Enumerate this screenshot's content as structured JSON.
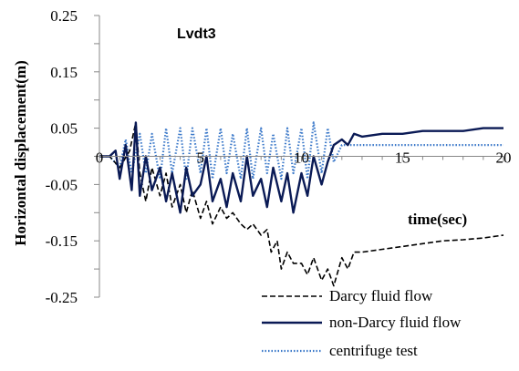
{
  "chart_data": {
    "type": "line",
    "title": "Lvdt3",
    "xlabel": "time(sec)",
    "ylabel": "Horizontal displacement(m)",
    "xlim": [
      0,
      20
    ],
    "ylim": [
      -0.25,
      0.25
    ],
    "xticks": [
      0,
      5,
      10,
      15,
      20
    ],
    "xtick_labels": [
      "0",
      "5",
      "10",
      "15",
      "20"
    ],
    "yticks": [
      0.25,
      0.15,
      0.05,
      -0.05,
      -0.15,
      -0.25
    ],
    "ytick_labels": [
      "0.25",
      "0.15",
      "0.05",
      "-0.05",
      "-0.15",
      "-0.25"
    ],
    "grid": false,
    "legend_position": "bottom-right",
    "series": [
      {
        "name": "Darcy fluid flow",
        "color": "#000000",
        "style": "dashed",
        "x": [
          0,
          0.5,
          1.0,
          1.5,
          1.8,
          2.0,
          2.3,
          2.6,
          3.0,
          3.3,
          3.6,
          4.0,
          4.3,
          4.6,
          5.0,
          5.3,
          5.6,
          6.0,
          6.3,
          6.6,
          7.0,
          7.3,
          7.6,
          8.0,
          8.3,
          8.5,
          8.8,
          9.0,
          9.3,
          9.6,
          10.0,
          10.3,
          10.6,
          11.0,
          11.3,
          11.6,
          12.0,
          12.3,
          12.6,
          13.0,
          14.0,
          15.0,
          16.0,
          17.0,
          18.0,
          19.0,
          20.0
        ],
        "y": [
          0.0,
          0.0,
          -0.02,
          0.01,
          0.06,
          -0.03,
          -0.08,
          -0.02,
          -0.07,
          -0.03,
          -0.09,
          -0.05,
          -0.1,
          -0.06,
          -0.11,
          -0.08,
          -0.12,
          -0.09,
          -0.11,
          -0.1,
          -0.12,
          -0.13,
          -0.12,
          -0.14,
          -0.13,
          -0.17,
          -0.15,
          -0.2,
          -0.17,
          -0.19,
          -0.19,
          -0.21,
          -0.18,
          -0.22,
          -0.2,
          -0.23,
          -0.18,
          -0.2,
          -0.17,
          -0.17,
          -0.165,
          -0.16,
          -0.155,
          -0.15,
          -0.148,
          -0.145,
          -0.14
        ]
      },
      {
        "name": "non-Darcy fluid flow",
        "color": "#0a1a55",
        "style": "solid",
        "x": [
          0,
          0.5,
          0.8,
          1.0,
          1.3,
          1.6,
          1.8,
          2.0,
          2.3,
          2.6,
          3.0,
          3.3,
          3.6,
          4.0,
          4.3,
          4.6,
          5.0,
          5.3,
          5.6,
          6.0,
          6.3,
          6.6,
          7.0,
          7.3,
          7.6,
          8.0,
          8.3,
          8.6,
          9.0,
          9.3,
          9.6,
          10.0,
          10.3,
          10.6,
          11.0,
          11.3,
          11.6,
          12.0,
          12.3,
          12.6,
          13.0,
          14.0,
          15.0,
          16.0,
          17.0,
          18.0,
          19.0,
          20.0
        ],
        "y": [
          0.0,
          0.0,
          0.01,
          -0.04,
          0.02,
          -0.06,
          0.06,
          -0.07,
          0.0,
          -0.06,
          -0.02,
          -0.08,
          -0.03,
          -0.1,
          -0.02,
          -0.07,
          -0.05,
          0.0,
          -0.08,
          -0.04,
          -0.09,
          -0.03,
          -0.08,
          0.0,
          -0.07,
          -0.04,
          -0.09,
          -0.02,
          -0.08,
          -0.03,
          -0.1,
          -0.03,
          -0.07,
          0.0,
          -0.05,
          -0.01,
          0.02,
          0.03,
          0.02,
          0.04,
          0.035,
          0.04,
          0.04,
          0.045,
          0.045,
          0.045,
          0.05,
          0.05
        ]
      },
      {
        "name": "centrifuge test",
        "color": "#3a78c9",
        "style": "dotted",
        "x": [
          0,
          0.5,
          1.0,
          1.3,
          1.6,
          2.0,
          2.3,
          2.6,
          3.0,
          3.3,
          3.6,
          4.0,
          4.3,
          4.6,
          5.0,
          5.3,
          5.6,
          6.0,
          6.3,
          6.6,
          7.0,
          7.3,
          7.6,
          8.0,
          8.3,
          8.6,
          9.0,
          9.3,
          9.6,
          10.0,
          10.3,
          10.6,
          11.0,
          11.3,
          11.6,
          12.0,
          13.0,
          14.0,
          15.0,
          16.0,
          17.0,
          18.0,
          19.0,
          20.0
        ],
        "y": [
          0.0,
          0.0,
          -0.02,
          0.03,
          -0.03,
          0.04,
          -0.03,
          0.04,
          -0.04,
          0.05,
          -0.03,
          0.05,
          -0.04,
          0.05,
          -0.03,
          0.05,
          -0.04,
          0.05,
          -0.03,
          0.04,
          -0.04,
          0.05,
          -0.04,
          0.05,
          -0.03,
          0.04,
          -0.04,
          0.05,
          -0.03,
          0.05,
          -0.04,
          0.06,
          -0.03,
          0.05,
          -0.01,
          0.02,
          0.02,
          0.02,
          0.02,
          0.02,
          0.02,
          0.02,
          0.02,
          0.02
        ]
      }
    ]
  }
}
